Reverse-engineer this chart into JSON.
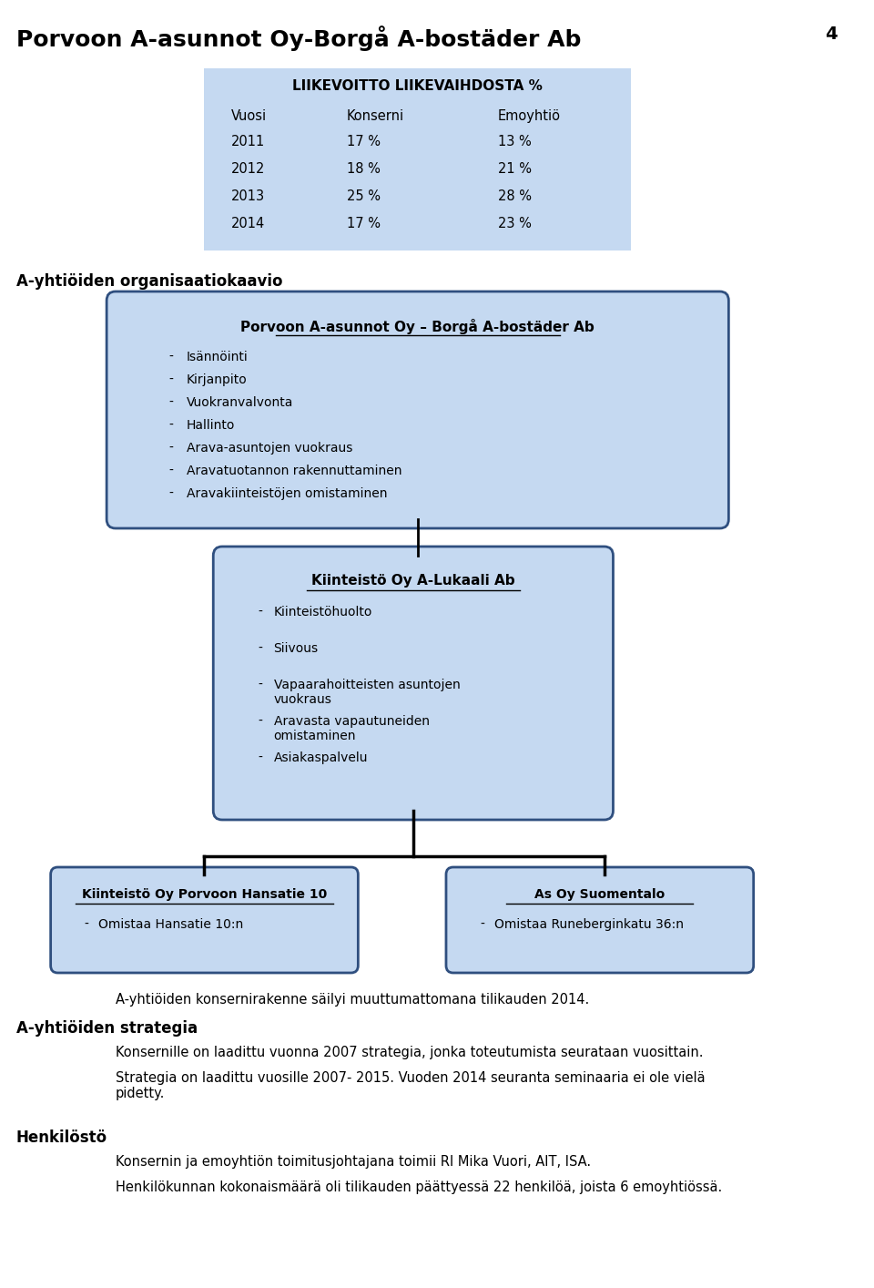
{
  "page_title": "Porvoon A-asunnot Oy-Borgå A-bostäder Ab",
  "page_number": "4",
  "bg_color": "#ffffff",
  "box_color": "#c5d9f1",
  "box_border_color": "#2f4f7f",
  "table_title": "LIIKEVOITTO LIIKEVAIHDOSTA %",
  "table_headers": [
    "Vuosi",
    "Konserni",
    "Emoyhtiö"
  ],
  "table_rows": [
    [
      "2011",
      "17 %",
      "13 %"
    ],
    [
      "2012",
      "18 %",
      "21 %"
    ],
    [
      "2013",
      "25 %",
      "28 %"
    ],
    [
      "2014",
      "17 %",
      "23 %"
    ]
  ],
  "org_label": "A-yhtiöiden organisaatiokaavio",
  "box1_title": "Porvoon A-asunnot Oy – Borgå A-bostäder Ab",
  "box1_items": [
    "Isännöinti",
    "Kirjanpito",
    "Vuokranvalvonta",
    "Hallinto",
    "Arava-asuntojen vuokraus",
    "Aravatuotannon rakennuttaminen",
    "Aravakiinteistöjen omistaminen"
  ],
  "box2_title": "Kiinteistö Oy A-Lukaali Ab",
  "box2_items": [
    "Kiinteistöhuolto",
    "Siivous",
    "Vapaarahoitteisten asuntojen\nvuokraus",
    "Aravasta vapautuneiden\nomistaminen",
    "Asiakaspalvelu"
  ],
  "box3_title": "Kiinteistö Oy Porvoon Hansatie 10",
  "box3_items": [
    "Omistaa Hansatie 10:n"
  ],
  "box4_title": "As Oy Suomentalo",
  "box4_items": [
    "Omistaa Runeberginkatu 36:n"
  ],
  "section1_title": "A-yhtiöiden strategia",
  "section1_text1": "Konsernille on laadittu vuonna 2007 strategia, jonka toteutumista seurataan vuosittain.",
  "section1_text2": "Strategia on laadittu vuosille 2007- 2015. Vuoden 2014 seuranta seminaaria ei ole vielä\npidetty.",
  "section2_title": "Henkilöstö",
  "section2_text1": "Konsernin ja emoyhtiön toimitusjohtajana toimii RI Mika Vuori, AIT, ISA.",
  "section2_text2": "Henkilökunnan kokonaismäärä oli tilikauden päättyessä 22 henkilöä, joista 6 emoyhtiössä.",
  "bottom_note": "A-yhtiöiden konsernirakenne säilyi muuttumattomana tilikauden 2014."
}
